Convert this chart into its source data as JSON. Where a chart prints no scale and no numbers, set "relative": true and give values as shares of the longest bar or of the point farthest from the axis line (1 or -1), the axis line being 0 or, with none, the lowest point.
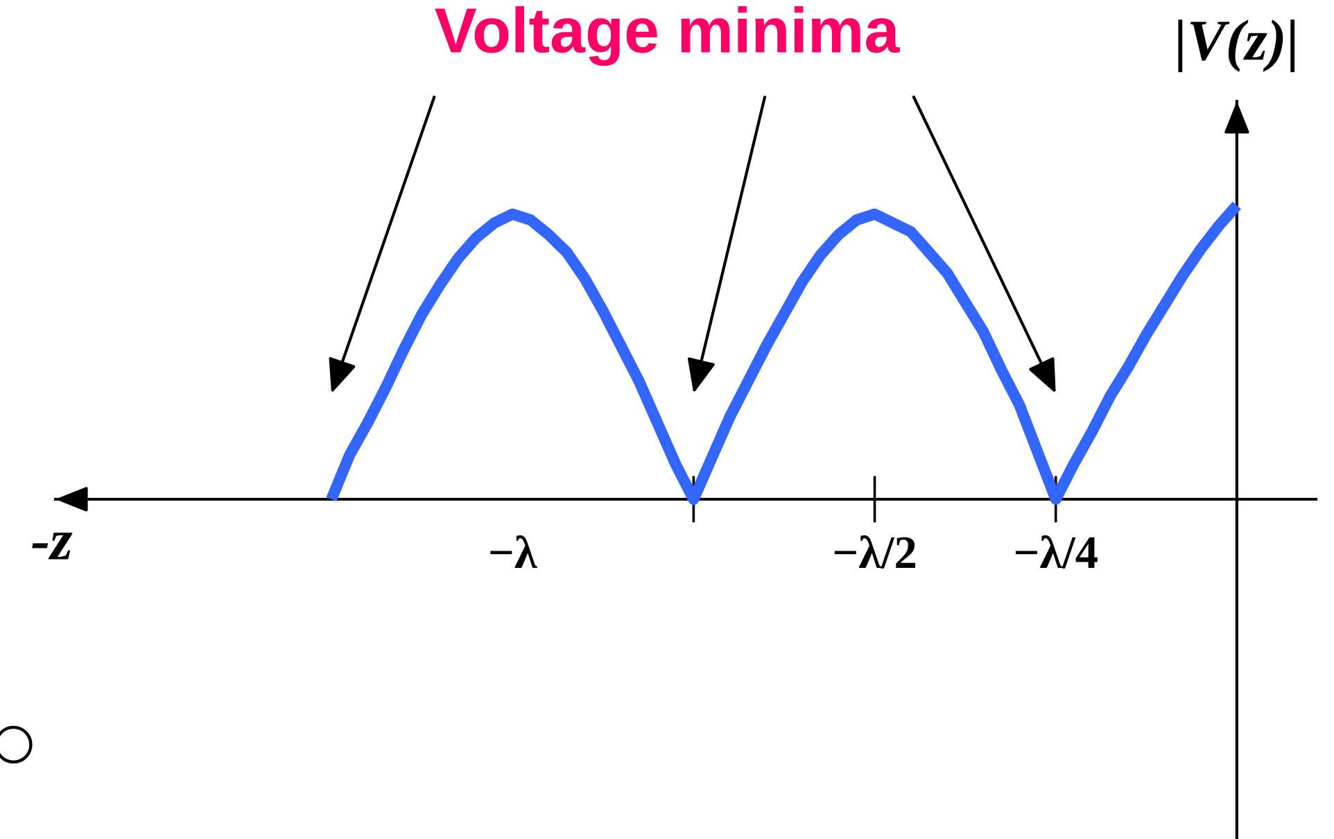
{
  "chart_data": {
    "type": "line",
    "title": "Voltage minima",
    "xlabel": "-z",
    "ylabel": "|V(z)|",
    "relative": true,
    "tick_labels": "x",
    "grid": false,
    "marker": "none",
    "line_style": "solid",
    "categories": [
      null,
      null,
      null,
      null,
      null,
      null,
      null,
      null,
      null,
      null,
      "−λ",
      null,
      null,
      null,
      null,
      null,
      null,
      null,
      null,
      null,
      null,
      null,
      null,
      null,
      null,
      null,
      null,
      null,
      null,
      null,
      "−λ/2",
      null,
      null,
      null,
      null,
      null,
      null,
      null,
      null,
      null,
      "−λ/4",
      null,
      null,
      null,
      null,
      null,
      null,
      null,
      null,
      null,
      null
    ],
    "series": [
      {
        "color": "#3366ff",
        "values": [
          0,
          0.15,
          0.26,
          0.38,
          0.51,
          0.63,
          0.73,
          0.82,
          0.89,
          0.94,
          0.97,
          0.95,
          0.9,
          0.84,
          0.75,
          0.64,
          0.52,
          0.4,
          0.26,
          0.12,
          0,
          0.14,
          0.28,
          0.4,
          0.52,
          0.63,
          0.74,
          0.83,
          0.9,
          0.95,
          0.97,
          0.94,
          0.91,
          0.84,
          0.77,
          0.67,
          0.57,
          0.44,
          0.32,
          0.16,
          0,
          0.12,
          0.23,
          0.35,
          0.45,
          0.56,
          0.66,
          0.76,
          0.85,
          0.93,
          1
        ]
      }
    ]
  }
}
